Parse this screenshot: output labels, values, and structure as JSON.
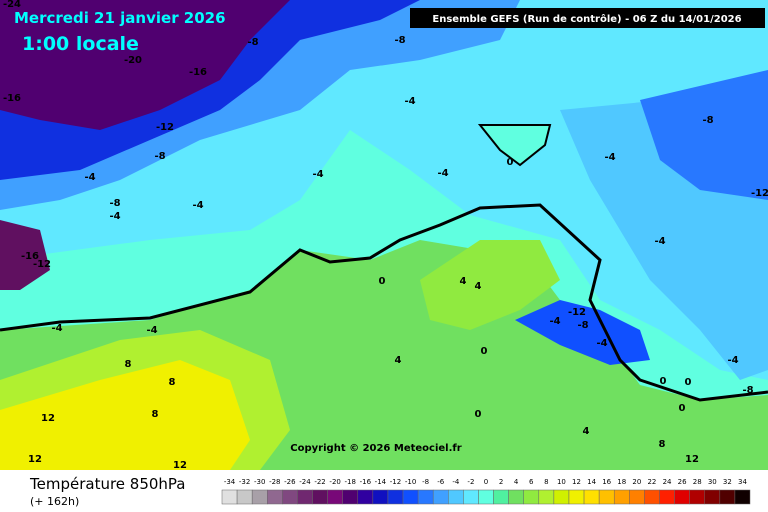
{
  "header": {
    "date": "Mercredi 21 janvier 2026",
    "local_time": "1:00 locale",
    "run": "Ensemble GEFS  (Run de contrôle)  -  06 Z du 14/01/2026"
  },
  "copyright": "Copyright © 2026 Meteociel.fr",
  "footer": {
    "title": "Température 850hPa",
    "lead": "(+ 162h)"
  },
  "legend": {
    "labels": [
      -34,
      -32,
      -30,
      -28,
      -26,
      -24,
      -22,
      -20,
      -18,
      -16,
      -14,
      -12,
      -10,
      -8,
      -6,
      -4,
      -2,
      0,
      2,
      4,
      6,
      8,
      10,
      12,
      14,
      16,
      18,
      20,
      22,
      24,
      26,
      28,
      30,
      32,
      34
    ],
    "colors": [
      "#e0e0e0",
      "#c8c8c8",
      "#a8a0a8",
      "#906890",
      "#804880",
      "#702870",
      "#601060",
      "#780878",
      "#500070",
      "#3000a0",
      "#1010c0",
      "#1030e0",
      "#1050ff",
      "#2878ff",
      "#40a0ff",
      "#50c8ff",
      "#60e8ff",
      "#60ffe0",
      "#50f0a0",
      "#70e060",
      "#90ea40",
      "#b0f030",
      "#d0f000",
      "#f0f000",
      "#ffe000",
      "#ffc000",
      "#ffa000",
      "#ff8000",
      "#ff5000",
      "#ff2000",
      "#e00000",
      "#b00000",
      "#800000",
      "#500000",
      "#100000"
    ]
  },
  "contour_labels": [
    "-24",
    "-8",
    "-8",
    "-20",
    "-16",
    "-16",
    "-12",
    "-8",
    "-4",
    "-8",
    "-4",
    "-8",
    "-4",
    "-4",
    "-4",
    "-4",
    "0",
    "-4",
    "-12",
    "-4",
    "-16",
    "-12",
    "0",
    "4",
    "4",
    "-4",
    "-4",
    "-12",
    "-4",
    "-8",
    "-4",
    "8",
    "8",
    "8",
    "12",
    "4",
    "0",
    "-4",
    "0",
    "0",
    "-8",
    "0",
    "0",
    "4",
    "8",
    "12",
    "12",
    "12"
  ]
}
